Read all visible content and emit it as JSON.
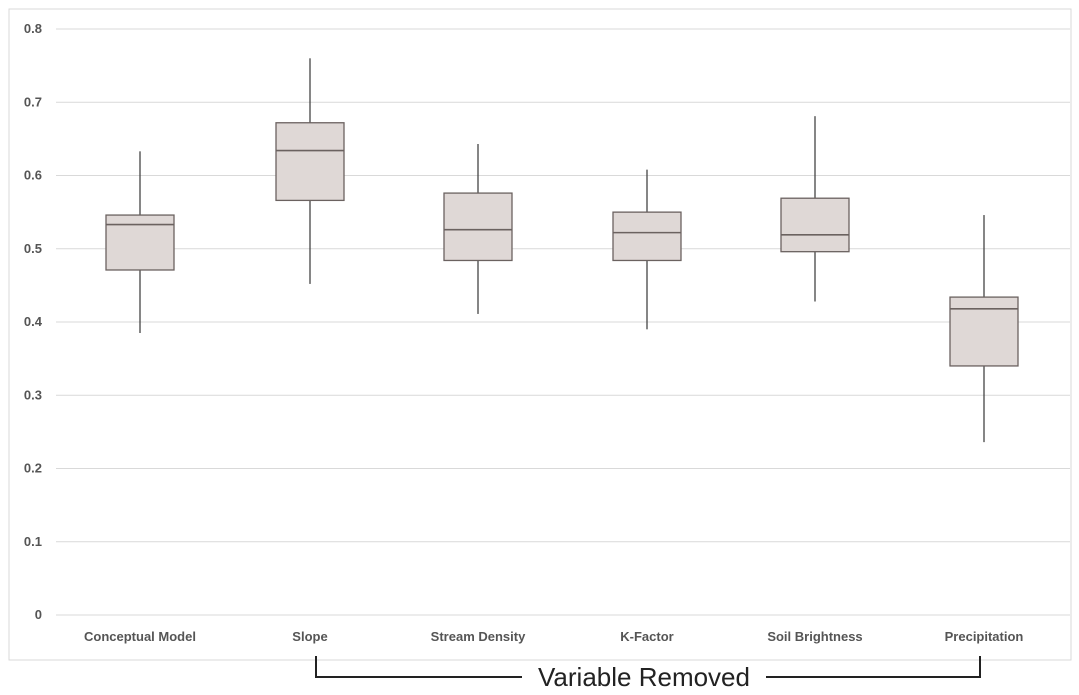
{
  "chart_data": {
    "type": "box",
    "title": "",
    "xlabel": "",
    "ylabel": "",
    "categories": [
      "Conceptual Model",
      "Slope",
      "Stream Density",
      "K-Factor",
      "Soil Brightness",
      "Precipitation"
    ],
    "boxes": [
      {
        "category": "Conceptual Model",
        "min": 0.385,
        "q1": 0.471,
        "median": 0.533,
        "q3": 0.546,
        "max": 0.633
      },
      {
        "category": "Slope",
        "min": 0.452,
        "q1": 0.566,
        "median": 0.634,
        "q3": 0.672,
        "max": 0.76
      },
      {
        "category": "Stream Density",
        "min": 0.411,
        "q1": 0.484,
        "median": 0.526,
        "q3": 0.576,
        "max": 0.643
      },
      {
        "category": "K-Factor",
        "min": 0.39,
        "q1": 0.484,
        "median": 0.522,
        "q3": 0.55,
        "max": 0.608
      },
      {
        "category": "Soil Brightness",
        "min": 0.428,
        "q1": 0.496,
        "median": 0.519,
        "q3": 0.569,
        "max": 0.681
      },
      {
        "category": "Precipitation",
        "min": 0.236,
        "q1": 0.34,
        "median": 0.418,
        "q3": 0.434,
        "max": 0.546
      }
    ],
    "ylim": [
      0,
      0.8
    ],
    "yticks": [
      "0",
      "0.1",
      "0.2",
      "0.3",
      "0.4",
      "0.5",
      "0.6",
      "0.7",
      "0.8"
    ],
    "grid": true,
    "legend": "none",
    "colors": {
      "box_fill": "#dfd8d6",
      "box_stroke": "#6b6260",
      "whisker": "#444444",
      "grid": "#d9d9d9"
    },
    "annotation": {
      "text": "Variable Removed",
      "spans_from": "Slope",
      "spans_to": "Precipitation"
    }
  }
}
